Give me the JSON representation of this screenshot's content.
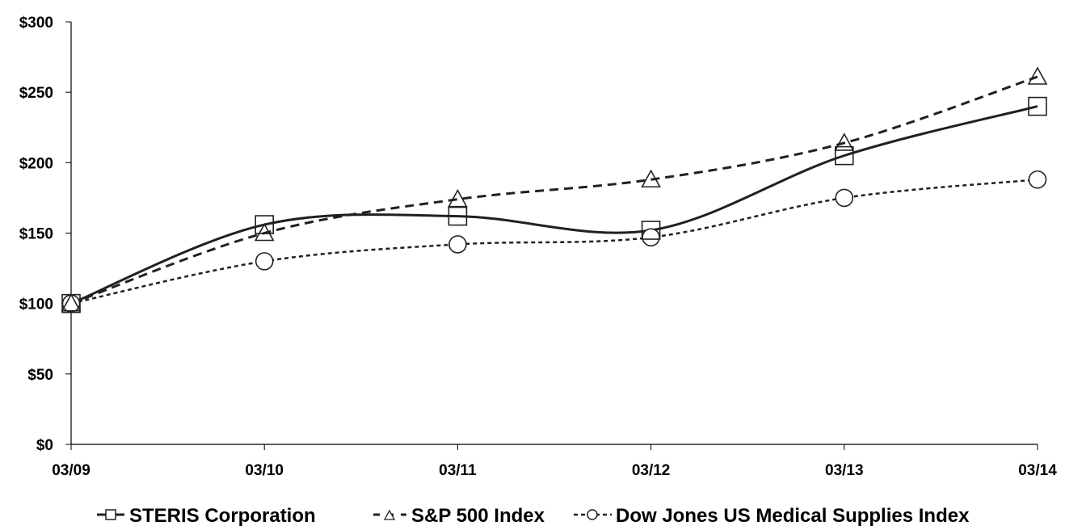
{
  "chart_data": {
    "type": "line",
    "title": "",
    "xlabel": "",
    "ylabel": "",
    "categories": [
      "03/09",
      "03/10",
      "03/11",
      "03/12",
      "03/13",
      "03/14"
    ],
    "y_ticks": [
      "$0",
      "$50",
      "$100",
      "$150",
      "$200",
      "$250",
      "$300"
    ],
    "ylim": [
      0,
      300
    ],
    "grid": false,
    "legend_position": "bottom",
    "series": [
      {
        "name": "STERIS Corporation",
        "values": [
          100,
          156,
          162,
          152,
          205,
          240
        ],
        "marker": "square",
        "line_style": "solid",
        "color": "#231f20"
      },
      {
        "name": "S&P 500 Index",
        "values": [
          100,
          150,
          174,
          188,
          214,
          261
        ],
        "marker": "triangle",
        "line_style": "dashed",
        "color": "#231f20"
      },
      {
        "name": "Dow Jones US Medical Supplies Index",
        "values": [
          100,
          130,
          142,
          147,
          175,
          188
        ],
        "marker": "circle",
        "line_style": "dotted",
        "color": "#231f20"
      }
    ]
  }
}
